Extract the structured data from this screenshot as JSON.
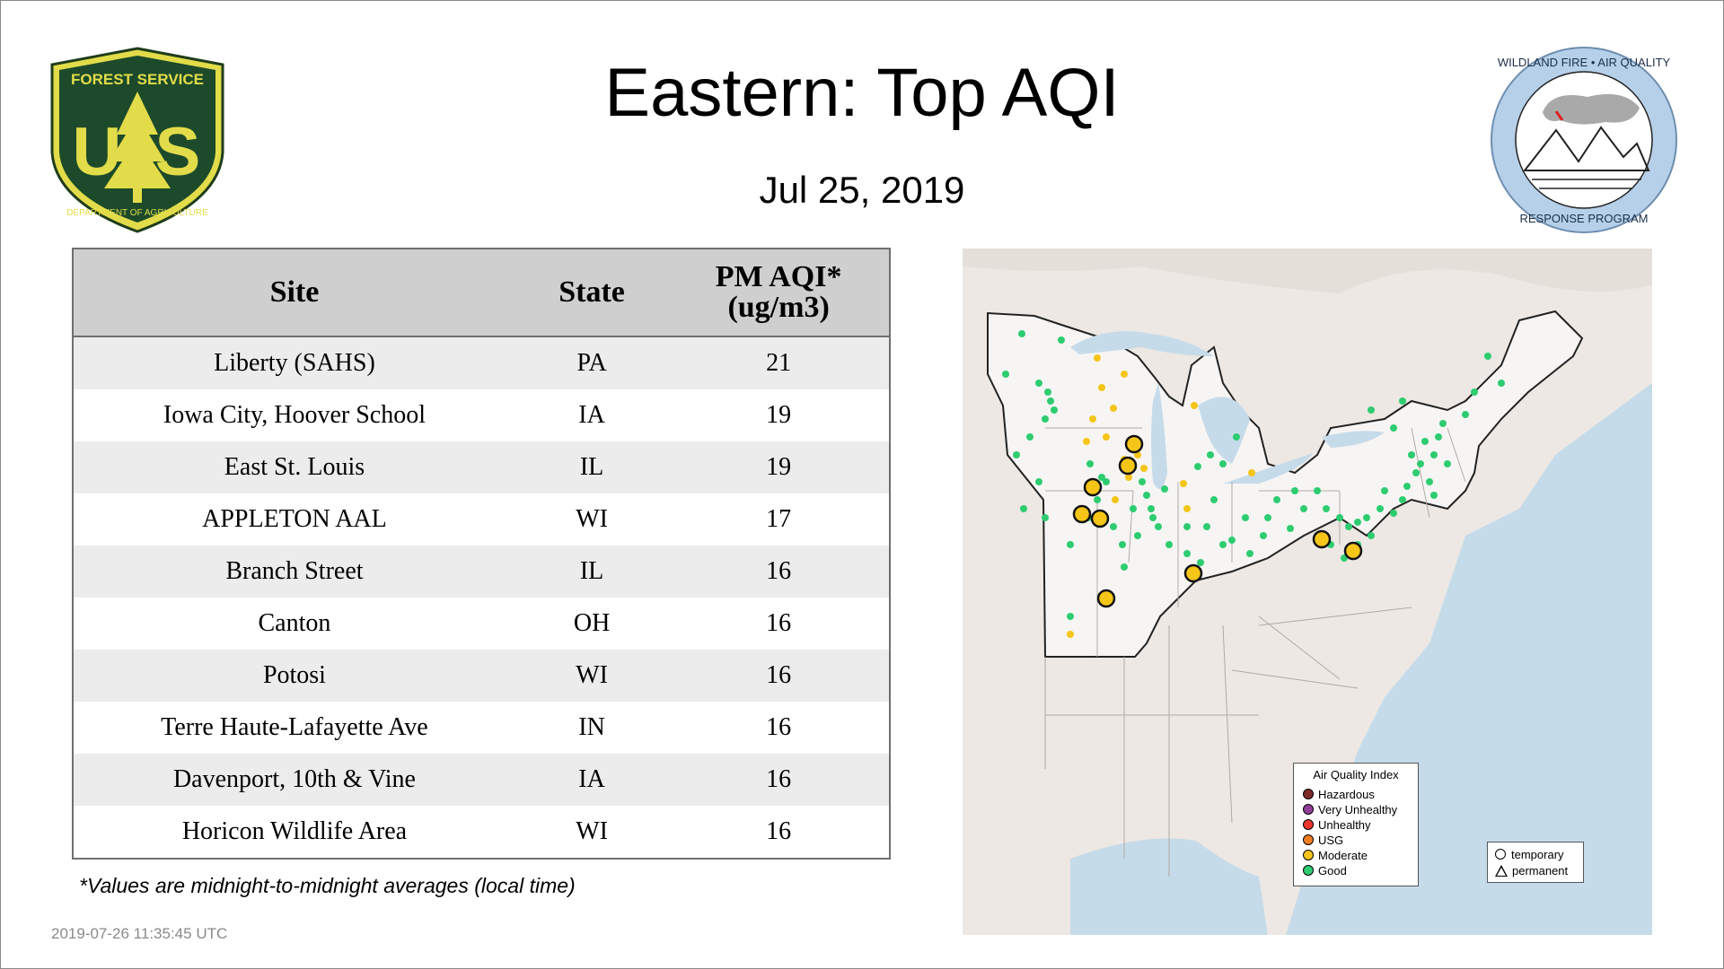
{
  "header": {
    "title": "Eastern: Top AQI",
    "date": "Jul 25, 2019"
  },
  "logos": {
    "usfs": {
      "top_text": "FOREST SERVICE",
      "letters": "U S",
      "bottom_text": "DEPARTMENT OF AGRICULTURE"
    },
    "wfaq": {
      "top_text": "WILDLAND FIRE • AIR QUALITY",
      "bottom_text": "RESPONSE PROGRAM"
    }
  },
  "table": {
    "headers": {
      "site": "Site",
      "state": "State",
      "aqi_line1": "PM AQI*",
      "aqi_line2": "(ug/m3)"
    },
    "rows": [
      {
        "site": "Liberty (SAHS)",
        "state": "PA",
        "aqi": "21"
      },
      {
        "site": "Iowa City, Hoover School",
        "state": "IA",
        "aqi": "19"
      },
      {
        "site": "East St. Louis",
        "state": "IL",
        "aqi": "19"
      },
      {
        "site": "APPLETON AAL",
        "state": "WI",
        "aqi": "17"
      },
      {
        "site": "Branch Street",
        "state": "IL",
        "aqi": "16"
      },
      {
        "site": "Canton",
        "state": "OH",
        "aqi": "16"
      },
      {
        "site": "Potosi",
        "state": "WI",
        "aqi": "16"
      },
      {
        "site": "Terre Haute-Lafayette Ave",
        "state": "IN",
        "aqi": "16"
      },
      {
        "site": "Davenport, 10th & Vine",
        "state": "IA",
        "aqi": "16"
      },
      {
        "site": "Horicon Wildlife Area",
        "state": "WI",
        "aqi": "16"
      }
    ]
  },
  "footnote": "*Values are midnight-to-midnight averages (local time)",
  "timestamp": "2019-07-26 11:35:45 UTC",
  "map": {
    "legend": {
      "title": "Air Quality Index",
      "items": [
        {
          "label": "Hazardous",
          "color": "#7e2a2a"
        },
        {
          "label": "Very Unhealthy",
          "color": "#8f3f97"
        },
        {
          "label": "Unhealthy",
          "color": "#e8352d"
        },
        {
          "label": "USG",
          "color": "#f07e23"
        },
        {
          "label": "Moderate",
          "color": "#f5c518"
        },
        {
          "label": "Good",
          "color": "#2ecc71"
        }
      ]
    },
    "shape_legend": {
      "temporary": "temporary",
      "permanent": "permanent"
    },
    "colors": {
      "water": "#c6dbea",
      "land": "#ede8e3",
      "region": "#f7f5f3",
      "good": "#2ecc71",
      "moderate": "#f5c518"
    }
  }
}
